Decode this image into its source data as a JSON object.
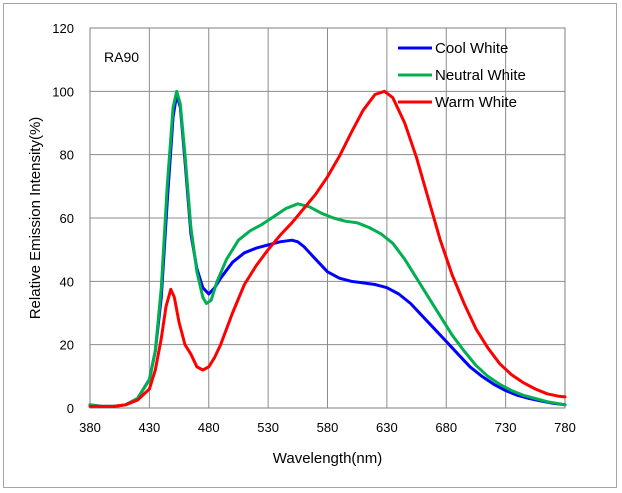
{
  "chart_data": {
    "type": "line",
    "annotation": "RA90",
    "xlabel": "Wavelength(nm)",
    "ylabel": "Relative Emission Intensity(%)",
    "xlim": [
      380,
      780
    ],
    "ylim": [
      0,
      120
    ],
    "xticks": [
      380,
      430,
      480,
      530,
      580,
      630,
      680,
      730,
      780
    ],
    "yticks": [
      0,
      20,
      40,
      60,
      80,
      100,
      120
    ],
    "grid": true,
    "legend_position": "top-right",
    "series": [
      {
        "name": "Cool White",
        "color": "#0000ff",
        "points": [
          [
            380,
            1
          ],
          [
            390,
            0.5
          ],
          [
            400,
            0.5
          ],
          [
            410,
            1
          ],
          [
            420,
            3
          ],
          [
            430,
            9
          ],
          [
            435,
            18
          ],
          [
            440,
            35
          ],
          [
            445,
            65
          ],
          [
            450,
            92
          ],
          [
            453,
            99
          ],
          [
            456,
            95
          ],
          [
            460,
            78
          ],
          [
            465,
            55
          ],
          [
            470,
            44
          ],
          [
            475,
            38
          ],
          [
            480,
            36
          ],
          [
            485,
            38
          ],
          [
            490,
            41
          ],
          [
            500,
            46
          ],
          [
            510,
            49
          ],
          [
            520,
            50.5
          ],
          [
            530,
            51.5
          ],
          [
            540,
            52.5
          ],
          [
            550,
            53
          ],
          [
            555,
            52.5
          ],
          [
            560,
            51
          ],
          [
            570,
            47
          ],
          [
            580,
            43
          ],
          [
            590,
            41
          ],
          [
            600,
            40
          ],
          [
            610,
            39.5
          ],
          [
            620,
            39
          ],
          [
            630,
            38
          ],
          [
            640,
            36
          ],
          [
            650,
            33
          ],
          [
            660,
            29
          ],
          [
            670,
            25
          ],
          [
            680,
            21
          ],
          [
            690,
            17
          ],
          [
            700,
            13
          ],
          [
            710,
            10
          ],
          [
            720,
            7.5
          ],
          [
            730,
            5.5
          ],
          [
            740,
            4
          ],
          [
            750,
            3
          ],
          [
            760,
            2.2
          ],
          [
            770,
            1.5
          ],
          [
            780,
            1
          ]
        ]
      },
      {
        "name": "Neutral White",
        "color": "#00b050",
        "points": [
          [
            380,
            1
          ],
          [
            390,
            0.5
          ],
          [
            400,
            0.5
          ],
          [
            410,
            1
          ],
          [
            420,
            3
          ],
          [
            430,
            9
          ],
          [
            435,
            18
          ],
          [
            440,
            38
          ],
          [
            445,
            70
          ],
          [
            450,
            95
          ],
          [
            453,
            100
          ],
          [
            456,
            96
          ],
          [
            460,
            80
          ],
          [
            465,
            57
          ],
          [
            470,
            43
          ],
          [
            475,
            35
          ],
          [
            478,
            33
          ],
          [
            482,
            34
          ],
          [
            487,
            40
          ],
          [
            495,
            47
          ],
          [
            505,
            53
          ],
          [
            515,
            56
          ],
          [
            525,
            58
          ],
          [
            535,
            60.5
          ],
          [
            545,
            63
          ],
          [
            555,
            64.5
          ],
          [
            565,
            63.5
          ],
          [
            575,
            61.5
          ],
          [
            585,
            60
          ],
          [
            595,
            59
          ],
          [
            605,
            58.5
          ],
          [
            615,
            57
          ],
          [
            625,
            55
          ],
          [
            635,
            52
          ],
          [
            645,
            47
          ],
          [
            655,
            41
          ],
          [
            665,
            35
          ],
          [
            675,
            29
          ],
          [
            685,
            23
          ],
          [
            695,
            18
          ],
          [
            705,
            13.5
          ],
          [
            715,
            10
          ],
          [
            725,
            7.5
          ],
          [
            735,
            5.5
          ],
          [
            745,
            4
          ],
          [
            755,
            3
          ],
          [
            765,
            2
          ],
          [
            780,
            1
          ]
        ]
      },
      {
        "name": "Warm White",
        "color": "#ff0000",
        "points": [
          [
            380,
            0.5
          ],
          [
            390,
            0.5
          ],
          [
            400,
            0.5
          ],
          [
            410,
            1
          ],
          [
            420,
            2.5
          ],
          [
            430,
            6
          ],
          [
            435,
            12
          ],
          [
            440,
            22
          ],
          [
            444,
            32
          ],
          [
            448,
            37.5
          ],
          [
            451,
            35
          ],
          [
            455,
            27
          ],
          [
            460,
            20
          ],
          [
            465,
            17
          ],
          [
            470,
            13
          ],
          [
            475,
            12
          ],
          [
            480,
            13
          ],
          [
            485,
            16
          ],
          [
            490,
            20
          ],
          [
            500,
            30
          ],
          [
            510,
            39
          ],
          [
            520,
            45
          ],
          [
            530,
            50
          ],
          [
            540,
            54.5
          ],
          [
            550,
            58.5
          ],
          [
            560,
            63
          ],
          [
            570,
            67.5
          ],
          [
            580,
            73
          ],
          [
            590,
            79.5
          ],
          [
            600,
            87
          ],
          [
            610,
            94
          ],
          [
            620,
            99
          ],
          [
            628,
            100
          ],
          [
            635,
            98
          ],
          [
            645,
            90
          ],
          [
            655,
            79
          ],
          [
            665,
            66
          ],
          [
            675,
            53
          ],
          [
            685,
            42
          ],
          [
            695,
            33
          ],
          [
            705,
            25
          ],
          [
            715,
            19
          ],
          [
            725,
            14
          ],
          [
            735,
            10.5
          ],
          [
            745,
            8
          ],
          [
            755,
            6
          ],
          [
            765,
            4.5
          ],
          [
            775,
            3.7
          ],
          [
            780,
            3.5
          ]
        ]
      }
    ]
  }
}
